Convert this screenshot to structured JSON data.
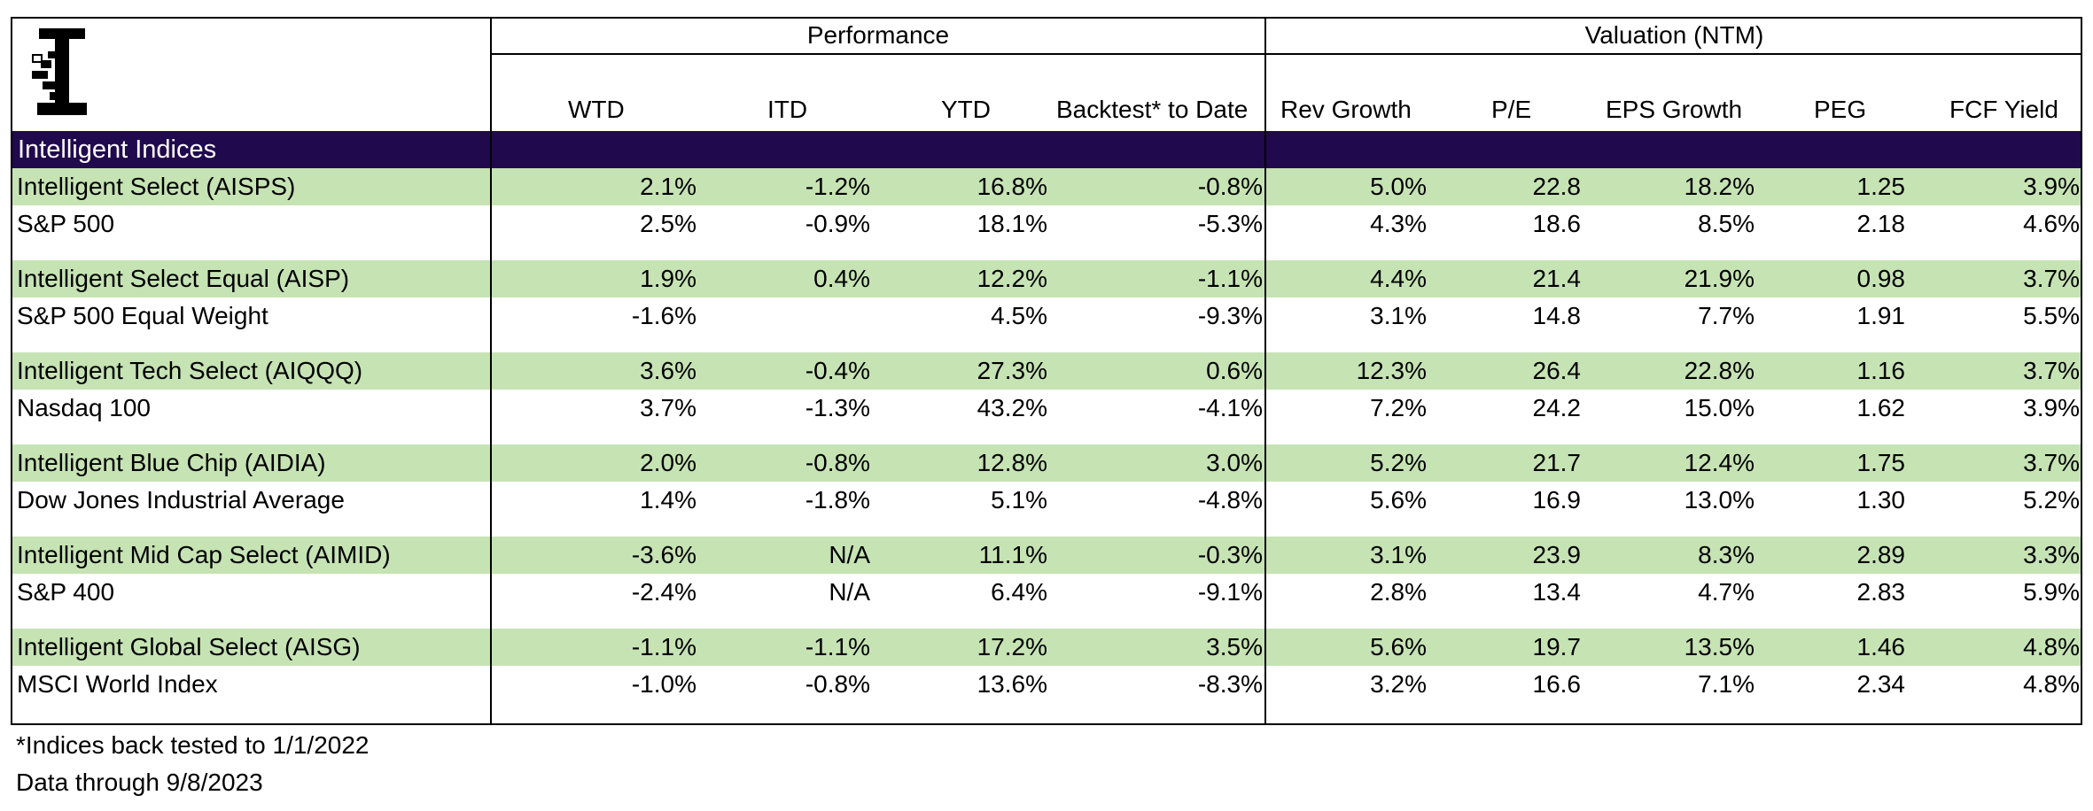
{
  "header": {
    "performance_label": "Performance",
    "valuation_label": "Valuation (NTM)",
    "columns": [
      "WTD",
      "ITD",
      "YTD",
      "Backtest* to Date",
      "Rev Growth",
      "P/E",
      "EPS Growth",
      "PEG",
      "FCF Yield"
    ]
  },
  "logo": {
    "name": "brand-logo"
  },
  "section_title": "Intelligent Indices",
  "colors": {
    "section_bar": "#21094e",
    "highlight_row": "#c6e3b4",
    "border": "#000000"
  },
  "groups": [
    {
      "index": {
        "name": "Intelligent Select (AISPS)",
        "values": [
          "2.1%",
          "-1.2%",
          "16.8%",
          "-0.8%",
          "5.0%",
          "22.8",
          "18.2%",
          "1.25",
          "3.9%"
        ]
      },
      "benchmark": {
        "name": "S&P 500",
        "values": [
          "2.5%",
          "-0.9%",
          "18.1%",
          "-5.3%",
          "4.3%",
          "18.6",
          "8.5%",
          "2.18",
          "4.6%"
        ]
      }
    },
    {
      "index": {
        "name": "Intelligent Select Equal (AISP)",
        "values": [
          "1.9%",
          "0.4%",
          "12.2%",
          "-1.1%",
          "4.4%",
          "21.4",
          "21.9%",
          "0.98",
          "3.7%"
        ]
      },
      "benchmark": {
        "name": "S&P 500 Equal Weight",
        "values": [
          "-1.6%",
          "",
          "4.5%",
          "-9.3%",
          "3.1%",
          "14.8",
          "7.7%",
          "1.91",
          "5.5%"
        ]
      }
    },
    {
      "index": {
        "name": "Intelligent Tech Select (AIQQQ)",
        "values": [
          "3.6%",
          "-0.4%",
          "27.3%",
          "0.6%",
          "12.3%",
          "26.4",
          "22.8%",
          "1.16",
          "3.7%"
        ]
      },
      "benchmark": {
        "name": "Nasdaq 100",
        "values": [
          "3.7%",
          "-1.3%",
          "43.2%",
          "-4.1%",
          "7.2%",
          "24.2",
          "15.0%",
          "1.62",
          "3.9%"
        ]
      }
    },
    {
      "index": {
        "name": "Intelligent Blue Chip (AIDIA)",
        "values": [
          "2.0%",
          "-0.8%",
          "12.8%",
          "3.0%",
          "5.2%",
          "21.7",
          "12.4%",
          "1.75",
          "3.7%"
        ]
      },
      "benchmark": {
        "name": "Dow Jones Industrial Average",
        "values": [
          "1.4%",
          "-1.8%",
          "5.1%",
          "-4.8%",
          "5.6%",
          "16.9",
          "13.0%",
          "1.30",
          "5.2%"
        ]
      }
    },
    {
      "index": {
        "name": "Intelligent Mid Cap Select (AIMID)",
        "values": [
          "-3.6%",
          "N/A",
          "11.1%",
          "-0.3%",
          "3.1%",
          "23.9",
          "8.3%",
          "2.89",
          "3.3%"
        ]
      },
      "benchmark": {
        "name": "S&P 400",
        "values": [
          "-2.4%",
          "N/A",
          "6.4%",
          "-9.1%",
          "2.8%",
          "13.4",
          "4.7%",
          "2.83",
          "5.9%"
        ]
      }
    },
    {
      "index": {
        "name": "Intelligent Global Select (AISG)",
        "values": [
          "-1.1%",
          "-1.1%",
          "17.2%",
          "3.5%",
          "5.6%",
          "19.7",
          "13.5%",
          "1.46",
          "4.8%"
        ]
      },
      "benchmark": {
        "name": "MSCI World Index",
        "values": [
          "-1.0%",
          "-0.8%",
          "13.6%",
          "-8.3%",
          "3.2%",
          "16.6",
          "7.1%",
          "2.34",
          "4.8%"
        ]
      }
    }
  ],
  "footnotes": [
    "*Indices back tested to 1/1/2022",
    "Data through 9/8/2023"
  ]
}
